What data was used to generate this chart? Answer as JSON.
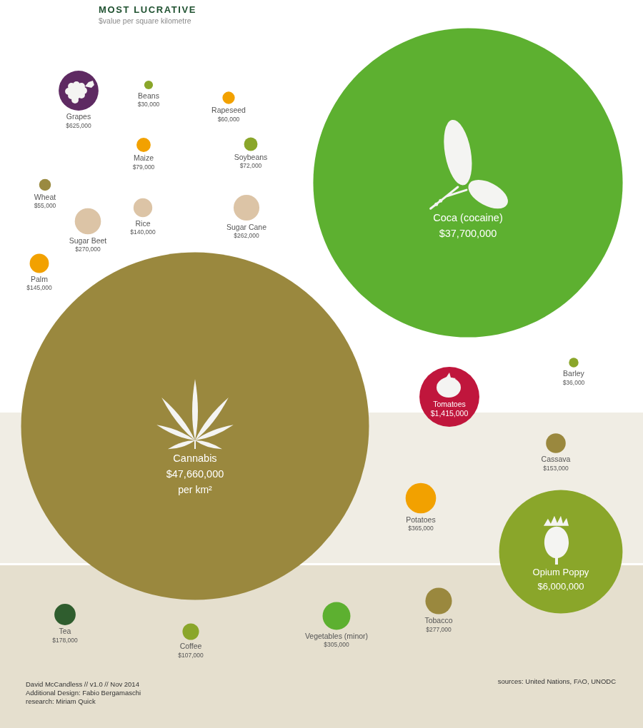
{
  "chart_data": {
    "type": "other",
    "title": "MOST LUCRATIVE",
    "subtitle": "$value per square kilometre",
    "categories": [
      "Grapes",
      "Beans",
      "Rapeseed",
      "Maize",
      "Soybeans",
      "Wheat",
      "Rice",
      "Sugar Cane",
      "Sugar Beet",
      "Palm",
      "Coca (cocaine)",
      "Cannabis",
      "Barley",
      "Tomatoes",
      "Cassava",
      "Potatoes",
      "Opium Poppy",
      "Tea",
      "Coffee",
      "Vegetables (minor)",
      "Tobacco"
    ],
    "values": [
      625000,
      30000,
      60000,
      79000,
      72000,
      55000,
      140000,
      262000,
      270000,
      145000,
      37700000,
      47660000,
      36000,
      1415000,
      153000,
      365000,
      6000000,
      178000,
      107000,
      305000,
      277000
    ],
    "value_labels": [
      "$625,000",
      "$30,000",
      "$60,000",
      "$79,000",
      "$72,000",
      "$55,000",
      "$140,000",
      "$262,000",
      "$270,000",
      "$145,000",
      "$37,700,000",
      "$47,660,000",
      "$36,000",
      "$1,415,000",
      "$153,000",
      "$365,000",
      "$6,000,000",
      "$178,000",
      "$107,000",
      "$305,000",
      "$277,000"
    ],
    "colors": [
      "#5e2a62",
      "#8aa62a",
      "#f2a100",
      "#f2a100",
      "#8aa62a",
      "#9a8a40",
      "#dcc4a6",
      "#dcc4a6",
      "#dcc4a6",
      "#f2a100",
      "#5db030",
      "#9a883e",
      "#8aa62a",
      "#c0163c",
      "#9a883e",
      "#f2a100",
      "#8aa62a",
      "#2f5d2e",
      "#8aa62a",
      "#5db030",
      "#9a883e"
    ],
    "annotations": [
      "David McCandless // v1.0 // Nov 2014",
      "Additional Design: Fabio Bergamaschi",
      "research: Miriam Quick",
      "sources: United Nations, FAO, UNODC",
      {
        "text": "per km²",
        "x": "Cannabis"
      }
    ]
  }
}
